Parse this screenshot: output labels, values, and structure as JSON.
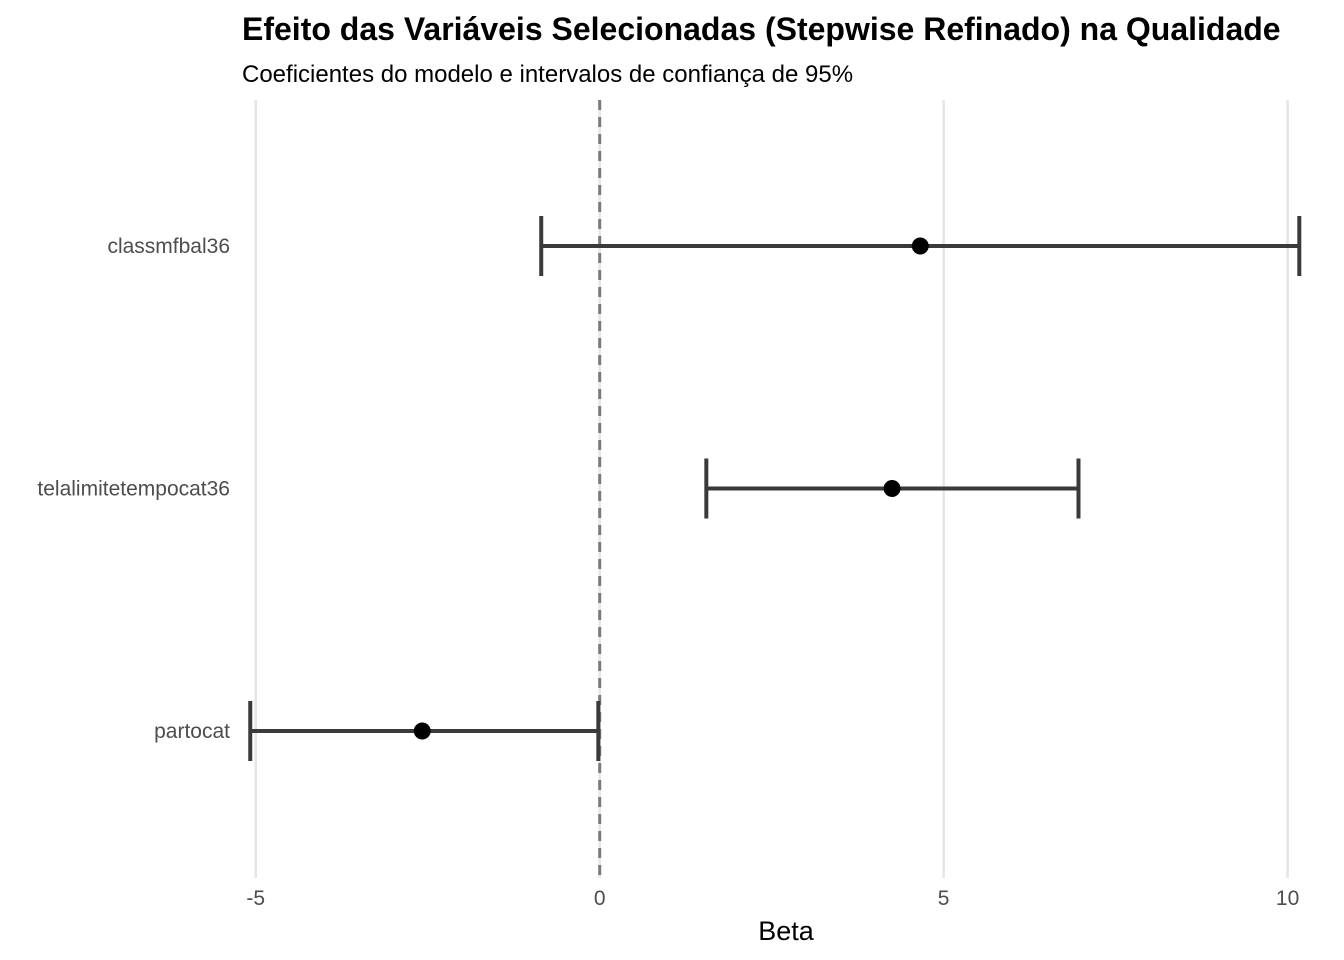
{
  "chart_data": {
    "type": "coefficient-plot",
    "title": "Efeito das Variáveis Selecionadas (Stepwise Refinado) na Qualidade",
    "subtitle": "Coeficientes do modelo e intervalos de confiança de 95%",
    "xlabel": "Beta",
    "ylabel": "",
    "xlim": [
      -5.2,
      10.5
    ],
    "x_ticks": [
      -5,
      0,
      5,
      10
    ],
    "x_tick_labels": [
      "-5",
      "0",
      "5",
      "10"
    ],
    "reference_line": 0,
    "grid": "vertical major",
    "categories": [
      "classmfbal36",
      "telalimitetempocat36",
      "partocat"
    ],
    "estimates": [
      4.66,
      4.25,
      -2.58
    ],
    "ci_lower": [
      -0.85,
      1.55,
      -5.08
    ],
    "ci_upper": [
      10.17,
      6.96,
      -0.02
    ],
    "colors": {
      "point": "#000000",
      "errorbar": "#3a3a3a",
      "grid": "#e5e5e5",
      "reference": "#7a7a7a"
    }
  }
}
